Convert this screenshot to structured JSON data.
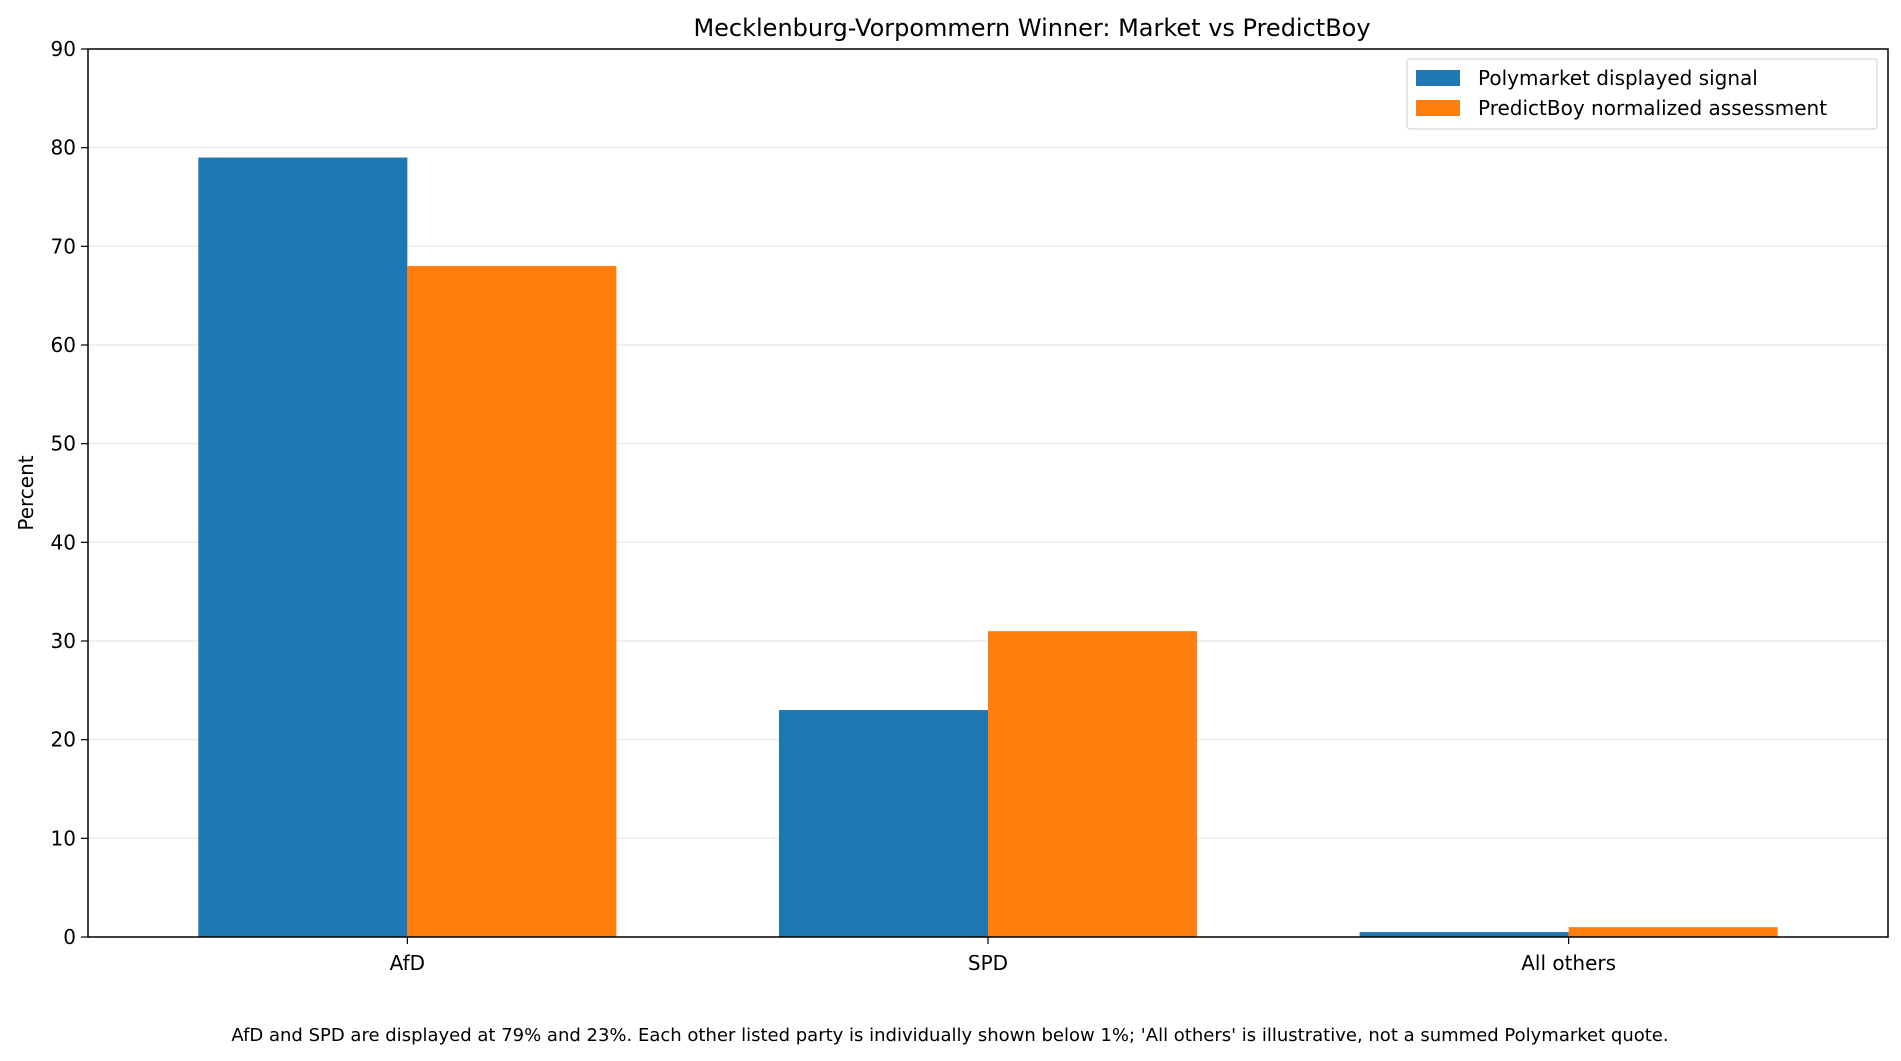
{
  "chart_data": {
    "type": "bar",
    "title": "Mecklenburg-Vorpommern Winner: Market vs PredictBoy",
    "xlabel": "",
    "ylabel": "Percent",
    "categories": [
      "AfD",
      "SPD",
      "All others"
    ],
    "series": [
      {
        "name": "Polymarket displayed signal",
        "color": "#1f77b4",
        "values": [
          79,
          23,
          0.5
        ]
      },
      {
        "name": "PredictBoy normalized assessment",
        "color": "#ff7f0e",
        "values": [
          68,
          31,
          1
        ]
      }
    ],
    "ylim": [
      0,
      90
    ],
    "yticks": [
      0,
      10,
      20,
      30,
      40,
      50,
      60,
      70,
      80,
      90
    ],
    "grid": "y",
    "legend_position": "top-right",
    "caption": "AfD and SPD are displayed at 79% and 23%. Each other listed party is individually shown below 1%; 'All others' is illustrative, not a summed Polymarket quote."
  }
}
